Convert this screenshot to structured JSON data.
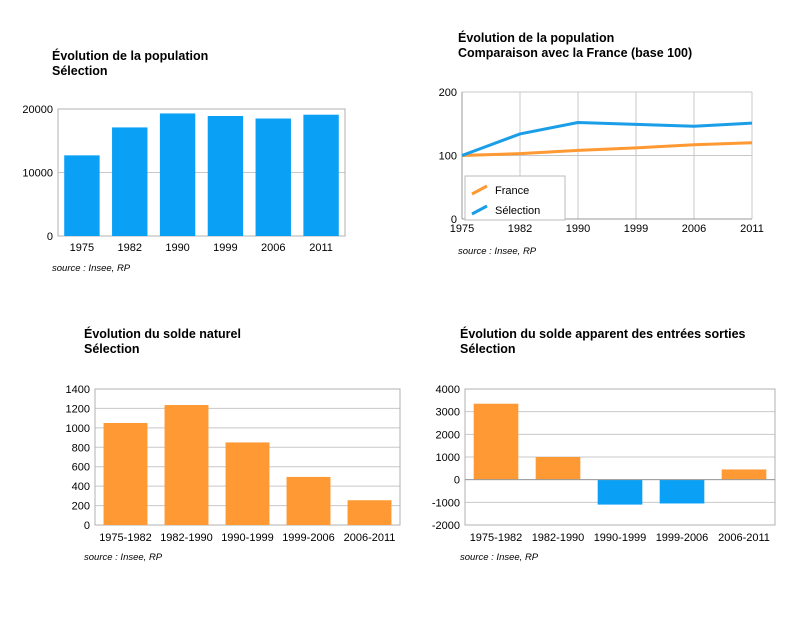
{
  "charts": [
    {
      "title": "Évolution de la population",
      "subtitle": "Sélection",
      "source": "source : Insee, RP"
    },
    {
      "title": "Évolution de la population",
      "subtitle": "Comparaison avec la France (base 100)",
      "source": "source : Insee, RP"
    },
    {
      "title": "Évolution du solde naturel",
      "subtitle": "Sélection",
      "source": "source : Insee, RP"
    },
    {
      "title": "Évolution du solde apparent des entrées sorties",
      "subtitle": "Sélection",
      "source": "source : Insee, RP"
    }
  ],
  "chart_data": [
    {
      "type": "bar",
      "title": "Évolution de la population",
      "subtitle": "Sélection",
      "categories": [
        "1975",
        "1982",
        "1990",
        "1999",
        "2006",
        "2011"
      ],
      "values": [
        12700,
        17100,
        19300,
        18900,
        18500,
        19100
      ],
      "ylim": [
        0,
        20000
      ],
      "yticks": [
        0,
        10000,
        20000
      ],
      "grid": true,
      "colors": {
        "bar": "#0aa0f5"
      }
    },
    {
      "type": "line",
      "title": "Évolution de la population",
      "subtitle": "Comparaison avec la France (base 100)",
      "x": [
        "1975",
        "1982",
        "1990",
        "1999",
        "2006",
        "2011"
      ],
      "series": [
        {
          "name": "France",
          "values": [
            100,
            103,
            108,
            112,
            117,
            120
          ],
          "color": "#ff9933"
        },
        {
          "name": "Sélection",
          "values": [
            100,
            134,
            152,
            149,
            146,
            151
          ],
          "color": "#1a9ee8"
        }
      ],
      "ylim": [
        0,
        200
      ],
      "yticks": [
        0,
        100,
        200
      ],
      "grid": true,
      "legend": "bottom-left"
    },
    {
      "type": "bar",
      "title": "Évolution du solde naturel",
      "subtitle": "Sélection",
      "categories": [
        "1975-1982",
        "1982-1990",
        "1990-1999",
        "1999-2006",
        "2006-2011"
      ],
      "values": [
        1050,
        1235,
        850,
        495,
        255
      ],
      "ylim": [
        0,
        1400
      ],
      "yticks": [
        0,
        200,
        400,
        600,
        800,
        1000,
        1200,
        1400
      ],
      "grid": true,
      "colors": {
        "bar": "#ff9933"
      }
    },
    {
      "type": "bar",
      "title": "Évolution du solde apparent des entrées sorties",
      "subtitle": "Sélection",
      "categories": [
        "1975-1982",
        "1982-1990",
        "1990-1999",
        "1999-2006",
        "2006-2011"
      ],
      "values": [
        3350,
        1000,
        -1100,
        -1050,
        450
      ],
      "ylim": [
        -2000,
        4000
      ],
      "yticks": [
        -2000,
        -1000,
        0,
        1000,
        2000,
        3000,
        4000
      ],
      "grid": true,
      "colors": {
        "positive": "#ff9933",
        "negative": "#0aa0f5"
      }
    }
  ]
}
